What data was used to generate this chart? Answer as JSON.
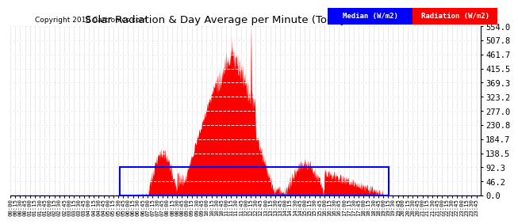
{
  "title": "Solar Radiation & Day Average per Minute (Today) 20180418",
  "copyright": "Copyright 2018 Cartronics.com",
  "ymax": 554.0,
  "yticks": [
    0.0,
    46.2,
    92.3,
    138.5,
    184.7,
    230.8,
    277.0,
    323.2,
    369.3,
    415.5,
    461.7,
    507.8,
    554.0
  ],
  "radiation_color": "#FF0000",
  "median_color": "#0000FF",
  "background_color": "#FFFFFF",
  "grid_color": "#AAAAAA",
  "legend_median_bg": "#0000FF",
  "legend_radiation_bg": "#FF0000",
  "legend_text_color": "#FFFFFF",
  "legend_label_median": "Median (W/m2)",
  "legend_label_radiation": "Radiation (W/m2)",
  "total_minutes": 1440,
  "sunrise_minute": 335,
  "sunset_minute": 1156,
  "median_value": 92.3,
  "peak_minute": 735,
  "peak_value": 554.0
}
